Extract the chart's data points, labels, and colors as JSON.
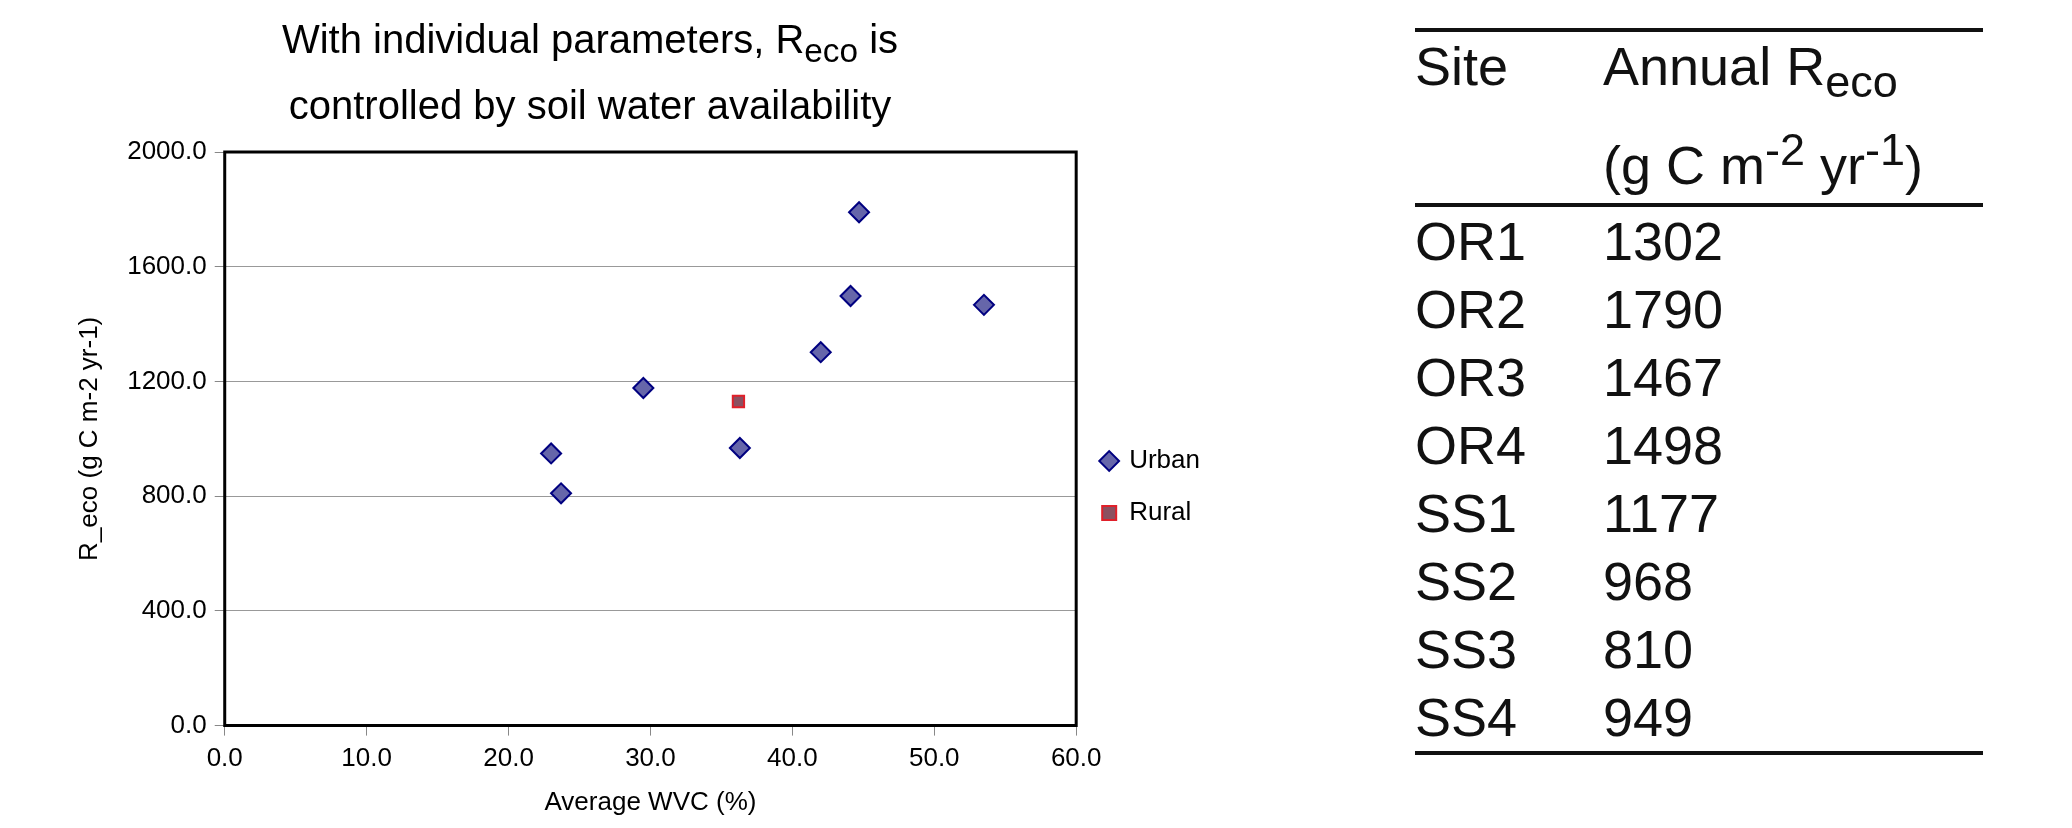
{
  "chart_data": [
    {
      "type": "scatter",
      "title": "With individual parameters, R$_{eco}$ is controlled by soil water availability",
      "xlabel": "Average WVC (%)",
      "ylabel": "R_eco (g C m-2 yr-1)",
      "series": [
        {
          "name": "Urban",
          "color": "#6666aa",
          "marker": "diamond",
          "x": [
            42.0,
            44.7,
            53.5,
            44.1,
            29.5,
            36.3,
            23.7,
            23.0
          ],
          "values": [
            1302,
            1790,
            1467,
            1498,
            1177,
            968,
            810,
            949
          ]
        },
        {
          "name": "Rural",
          "color": "#8b5060",
          "marker": "square",
          "x": [
            36.2
          ],
          "values": [
            1130
          ]
        }
      ],
      "xlim": [
        0,
        60
      ],
      "xticks": [
        {
          "value": 0,
          "label": "0.0"
        },
        {
          "value": 10,
          "label": "10.0"
        },
        {
          "value": 20,
          "label": "20.0"
        },
        {
          "value": 30,
          "label": "30.0"
        },
        {
          "value": 40,
          "label": "40.0"
        },
        {
          "value": 50,
          "label": "50.0"
        },
        {
          "value": 60,
          "label": "60.0"
        }
      ],
      "ylim": [
        0,
        2000
      ],
      "yticks": [
        {
          "value": 0,
          "label": "0.0"
        },
        {
          "value": 400,
          "label": "400.0"
        },
        {
          "value": 800,
          "label": "800.0"
        },
        {
          "value": 1200,
          "label": "1200.0"
        },
        {
          "value": 1600,
          "label": "1600.0"
        },
        {
          "value": 2000,
          "label": "2000.0"
        }
      ],
      "grid": "y",
      "legend": "right"
    },
    {
      "type": "other",
      "xlabel": "Site",
      "ylabel": "Annual R$_{eco}$ (g C m$^{-2}$ yr$^{-1}$)",
      "categories": [
        "OR1",
        "OR2",
        "OR3",
        "OR4",
        "SS1",
        "SS2",
        "SS3",
        "SS4"
      ],
      "values": [
        1302,
        1790,
        1467,
        1498,
        1177,
        968,
        810,
        949
      ],
      "data_labels": true
    }
  ]
}
